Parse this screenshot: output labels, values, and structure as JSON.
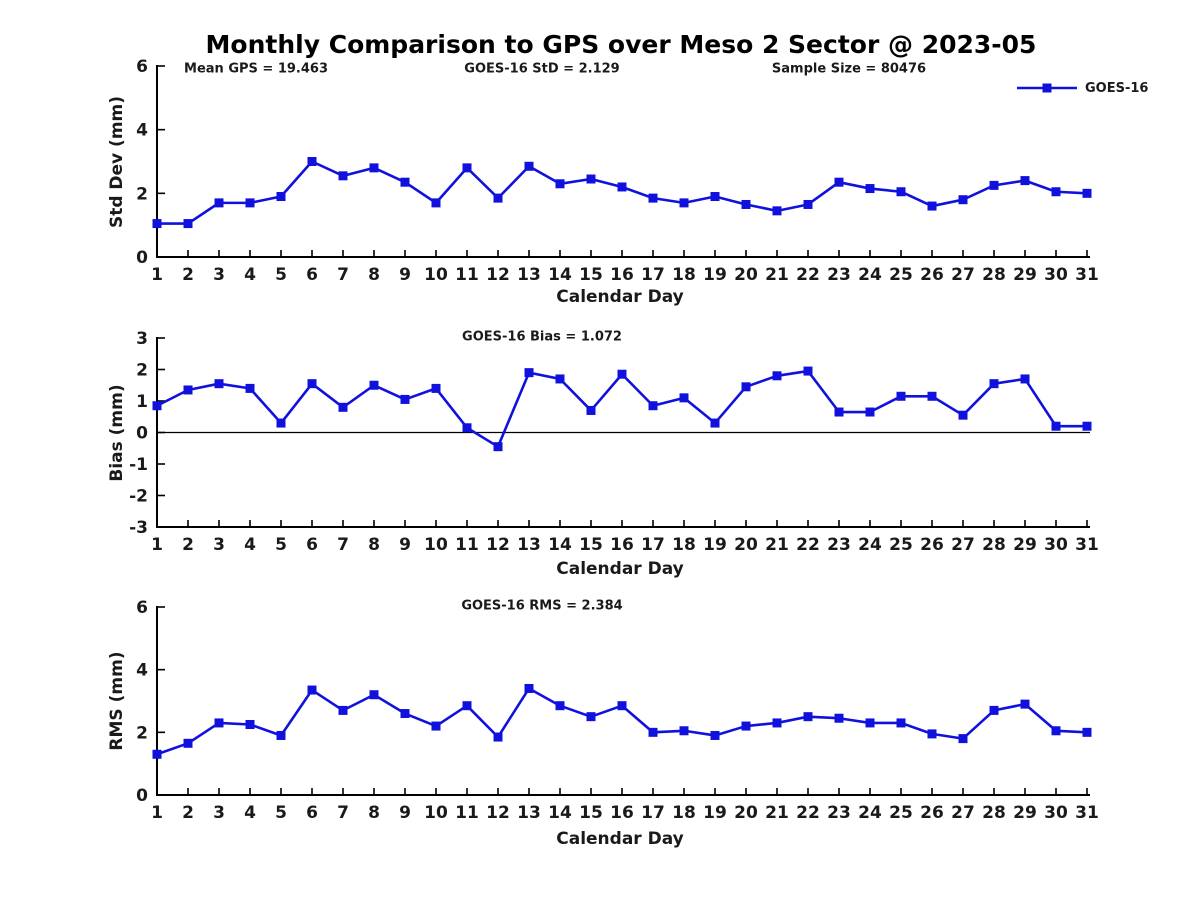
{
  "title": "Monthly Comparison to GPS over Meso 2 Sector @ 2023-05",
  "legend": {
    "label": "GOES-16",
    "color": "#1111DD"
  },
  "annotations": {
    "mean_gps": "Mean GPS = 19.463",
    "std": "GOES-16 StD = 2.129",
    "sample_size": "Sample Size = 80476",
    "bias": "GOES-16 Bias = 1.072",
    "rms": "GOES-16 RMS = 2.384"
  },
  "chart_data": [
    {
      "type": "line",
      "title": "Mean GPS = 19.463 | GOES-16 StD = 2.129 | Sample Size = 80476",
      "xlabel": "Calendar Day",
      "ylabel": "Std Dev (mm)",
      "ylim": [
        0,
        6
      ],
      "yticks": [
        0,
        2,
        4,
        6
      ],
      "grid": false,
      "legend_position": "top-right",
      "x": [
        1,
        2,
        3,
        4,
        5,
        6,
        7,
        8,
        9,
        10,
        11,
        12,
        13,
        14,
        15,
        16,
        17,
        18,
        19,
        20,
        21,
        22,
        23,
        24,
        25,
        26,
        27,
        28,
        29,
        30,
        31
      ],
      "series": [
        {
          "name": "GOES-16",
          "color": "#1111DD",
          "marker": "square",
          "values": [
            1.05,
            1.05,
            1.7,
            1.7,
            1.9,
            3.0,
            2.55,
            2.8,
            2.35,
            1.7,
            2.8,
            1.85,
            2.85,
            2.3,
            2.45,
            2.2,
            1.85,
            1.7,
            1.9,
            1.65,
            1.45,
            1.65,
            2.35,
            2.15,
            2.05,
            1.6,
            1.8,
            2.25,
            2.4,
            2.05,
            2.0
          ]
        }
      ]
    },
    {
      "type": "line",
      "title": "GOES-16 Bias = 1.072",
      "xlabel": "Calendar Day",
      "ylabel": "Bias (mm)",
      "ylim": [
        -3,
        3
      ],
      "yticks": [
        -3,
        -2,
        -1,
        0,
        1,
        2,
        3
      ],
      "zero_line": true,
      "grid": false,
      "x": [
        1,
        2,
        3,
        4,
        5,
        6,
        7,
        8,
        9,
        10,
        11,
        12,
        13,
        14,
        15,
        16,
        17,
        18,
        19,
        20,
        21,
        22,
        23,
        24,
        25,
        26,
        27,
        28,
        29,
        30,
        31
      ],
      "series": [
        {
          "name": "GOES-16",
          "color": "#1111DD",
          "marker": "square",
          "values": [
            0.85,
            1.35,
            1.55,
            1.4,
            0.3,
            1.55,
            0.8,
            1.5,
            1.05,
            1.4,
            0.15,
            -0.45,
            1.9,
            1.7,
            0.7,
            1.85,
            0.85,
            1.1,
            0.3,
            1.45,
            1.8,
            1.95,
            0.65,
            0.65,
            1.15,
            1.15,
            0.55,
            1.55,
            1.7,
            0.2,
            0.2
          ]
        }
      ]
    },
    {
      "type": "line",
      "title": "GOES-16 RMS = 2.384",
      "xlabel": "Calendar Day",
      "ylabel": "RMS (mm)",
      "ylim": [
        0,
        6
      ],
      "yticks": [
        0,
        2,
        4,
        6
      ],
      "grid": false,
      "x": [
        1,
        2,
        3,
        4,
        5,
        6,
        7,
        8,
        9,
        10,
        11,
        12,
        13,
        14,
        15,
        16,
        17,
        18,
        19,
        20,
        21,
        22,
        23,
        24,
        25,
        26,
        27,
        28,
        29,
        30,
        31
      ],
      "series": [
        {
          "name": "GOES-16",
          "color": "#1111DD",
          "marker": "square",
          "values": [
            1.3,
            1.65,
            2.3,
            2.25,
            1.9,
            3.35,
            2.7,
            3.2,
            2.6,
            2.2,
            2.85,
            1.85,
            3.4,
            2.85,
            2.5,
            2.85,
            2.0,
            2.05,
            1.9,
            2.2,
            2.3,
            2.5,
            2.45,
            2.3,
            2.3,
            1.95,
            1.8,
            2.7,
            2.9,
            2.05,
            2.0
          ]
        }
      ]
    }
  ]
}
